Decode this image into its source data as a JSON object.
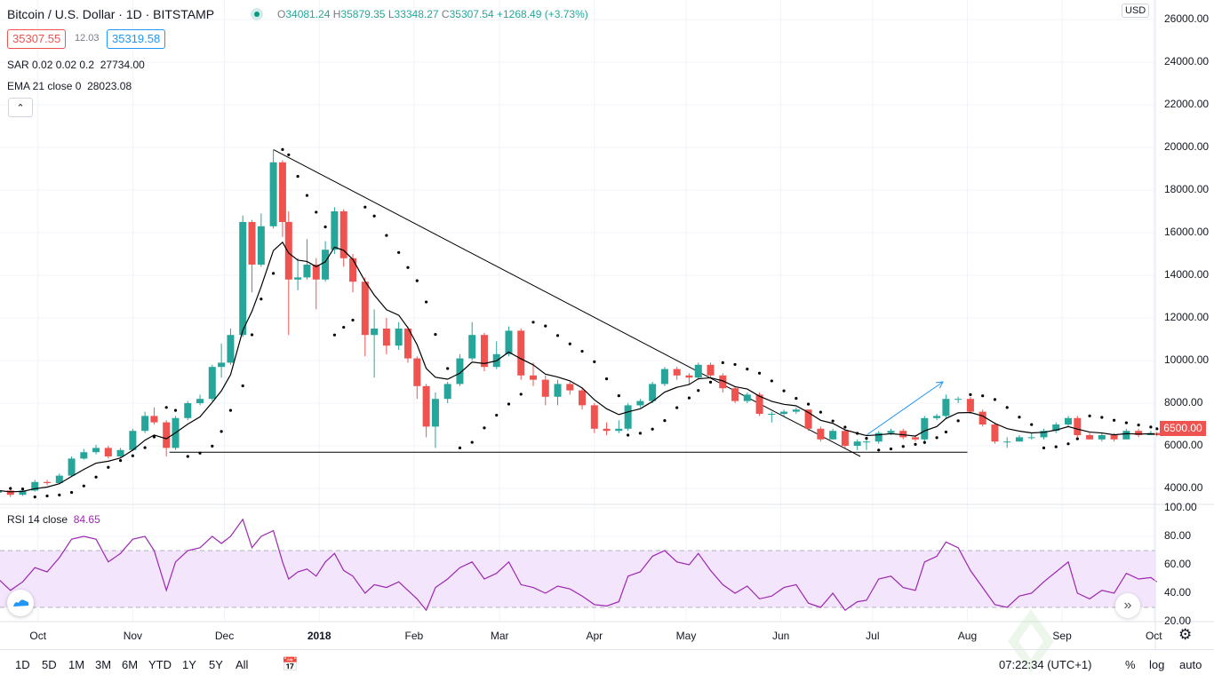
{
  "header": {
    "symbol_title": "Bitcoin / U.S. Dollar · 1D · BITSTAMP",
    "ohlc": {
      "o_label": "O",
      "o": "34081.24",
      "h_label": "H",
      "h": "35879.35",
      "l_label": "L",
      "l": "33348.27",
      "c_label": "C",
      "c": "35307.54",
      "change": "+1268.49 (+3.73%)"
    },
    "bid": "35307.55",
    "spread": "12.03",
    "ask": "35319.58",
    "sar_legend": "SAR 0.02 0.02 0.2",
    "sar_value": "27734.00",
    "ema_legend": "EMA 21 close 0",
    "ema_value": "28023.08",
    "collapse_icon": "chevron-up-icon"
  },
  "price_axis": {
    "currency": "USD",
    "labels": [
      "26000.00",
      "24000.00",
      "22000.00",
      "20000.00",
      "18000.00",
      "16000.00",
      "14000.00",
      "12000.00",
      "10000.00",
      "8000.00",
      "6000.00",
      "4000.00"
    ],
    "last_price": "6500.00"
  },
  "rsi": {
    "legend": "RSI 14 close",
    "value": "84.65",
    "axis_labels": [
      "100.00",
      "80.00",
      "60.00",
      "40.00",
      "20.00"
    ]
  },
  "time_axis": {
    "labels": [
      {
        "text": "Oct",
        "date": "2017-10-01"
      },
      {
        "text": "Nov",
        "date": "2017-11-01"
      },
      {
        "text": "Dec",
        "date": "2017-12-01"
      },
      {
        "text": "2018",
        "date": "2018-01-01"
      },
      {
        "text": "Feb",
        "date": "2018-02-01"
      },
      {
        "text": "Mar",
        "date": "2018-03-01"
      },
      {
        "text": "Apr",
        "date": "2018-04-01"
      },
      {
        "text": "May",
        "date": "2018-05-01"
      },
      {
        "text": "Jun",
        "date": "2018-06-01"
      },
      {
        "text": "Jul",
        "date": "2018-07-01"
      },
      {
        "text": "Aug",
        "date": "2018-08-01"
      },
      {
        "text": "Sep",
        "date": "2018-09-01"
      },
      {
        "text": "Oct",
        "date": "2018-10-01"
      }
    ]
  },
  "bottom_bar": {
    "ranges": [
      "1D",
      "5D",
      "1M",
      "3M",
      "6M",
      "YTD",
      "1Y",
      "5Y",
      "All"
    ],
    "clock": "07:22:34 (UTC+1)",
    "percent": "%",
    "log": "log",
    "auto": "auto"
  },
  "watermark": "Platzi",
  "colors": {
    "up": "#26a69a",
    "down": "#ef5350",
    "ema": "#000000",
    "sar": "#000000",
    "rsi": "#9c27b0",
    "rsi_band": "#f3e5fb",
    "drawing_blue": "#2196f3"
  },
  "chart_data": {
    "type": "candlestick",
    "price_range": [
      3500,
      26500
    ],
    "rsi_range": [
      20,
      100
    ],
    "rsi_bands": [
      30,
      70
    ],
    "grid": true,
    "columns": [
      "date",
      "open",
      "high",
      "low",
      "close",
      "rsi"
    ],
    "candles": [
      [
        "2017-09-18",
        3800,
        4000,
        3650,
        3900,
        50
      ],
      [
        "2017-09-22",
        3900,
        3950,
        3600,
        3700,
        42
      ],
      [
        "2017-09-26",
        3700,
        3950,
        3650,
        3900,
        48
      ],
      [
        "2017-09-30",
        3900,
        4400,
        3850,
        4300,
        58
      ],
      [
        "2017-10-04",
        4300,
        4400,
        4150,
        4250,
        55
      ],
      [
        "2017-10-08",
        4250,
        4700,
        4200,
        4600,
        65
      ],
      [
        "2017-10-12",
        4600,
        5500,
        4550,
        5400,
        78
      ],
      [
        "2017-10-16",
        5400,
        5850,
        5350,
        5700,
        80
      ],
      [
        "2017-10-20",
        5700,
        6050,
        5600,
        5900,
        78
      ],
      [
        "2017-10-24",
        5900,
        6000,
        5400,
        5500,
        62
      ],
      [
        "2017-10-28",
        5500,
        5900,
        5450,
        5800,
        68
      ],
      [
        "2017-11-01",
        5800,
        6800,
        5750,
        6700,
        78
      ],
      [
        "2017-11-05",
        6700,
        7600,
        6600,
        7400,
        80
      ],
      [
        "2017-11-08",
        7400,
        7800,
        7000,
        7100,
        70
      ],
      [
        "2017-11-12",
        7100,
        7200,
        5500,
        5900,
        42
      ],
      [
        "2017-11-15",
        5900,
        7400,
        5800,
        7300,
        62
      ],
      [
        "2017-11-19",
        7300,
        8100,
        7200,
        8000,
        70
      ],
      [
        "2017-11-23",
        8000,
        8400,
        7900,
        8200,
        72
      ],
      [
        "2017-11-27",
        8200,
        9800,
        8100,
        9700,
        80
      ],
      [
        "2017-11-30",
        9700,
        10800,
        9200,
        9900,
        75
      ],
      [
        "2017-12-03",
        9900,
        11500,
        9800,
        11200,
        80
      ],
      [
        "2017-12-07",
        11200,
        16800,
        11100,
        16500,
        92
      ],
      [
        "2017-12-10",
        16500,
        16600,
        13200,
        14500,
        72
      ],
      [
        "2017-12-13",
        14500,
        16900,
        14400,
        16300,
        80
      ],
      [
        "2017-12-17",
        16300,
        19900,
        16200,
        19300,
        84
      ],
      [
        "2017-12-20",
        19300,
        19400,
        15800,
        16500,
        62
      ],
      [
        "2017-12-22",
        16500,
        17000,
        11200,
        13800,
        50
      ],
      [
        "2017-12-25",
        13800,
        14800,
        13300,
        13900,
        55
      ],
      [
        "2017-12-28",
        13900,
        15700,
        13800,
        14500,
        57
      ],
      [
        "2017-12-31",
        14500,
        14800,
        12400,
        13800,
        52
      ],
      [
        "2018-01-03",
        13800,
        15600,
        13700,
        15200,
        62
      ],
      [
        "2018-01-06",
        15200,
        17200,
        15000,
        17000,
        68
      ],
      [
        "2018-01-09",
        17000,
        17100,
        14400,
        14800,
        56
      ],
      [
        "2018-01-12",
        14800,
        15000,
        13200,
        13700,
        52
      ],
      [
        "2018-01-16",
        13700,
        13900,
        10200,
        11200,
        40
      ],
      [
        "2018-01-19",
        11200,
        12400,
        9200,
        11500,
        46
      ],
      [
        "2018-01-23",
        11500,
        12000,
        10300,
        10700,
        44
      ],
      [
        "2018-01-27",
        10700,
        11800,
        10500,
        11500,
        48
      ],
      [
        "2018-01-30",
        11500,
        11600,
        9900,
        10100,
        42
      ],
      [
        "2018-02-02",
        10100,
        10200,
        8200,
        8800,
        36
      ],
      [
        "2018-02-05",
        8800,
        8900,
        6400,
        6900,
        28
      ],
      [
        "2018-02-08",
        6900,
        8500,
        5900,
        8200,
        44
      ],
      [
        "2018-02-12",
        8200,
        9000,
        8000,
        8900,
        50
      ],
      [
        "2018-02-16",
        8900,
        10300,
        8800,
        10100,
        58
      ],
      [
        "2018-02-20",
        10100,
        11800,
        10000,
        11200,
        62
      ],
      [
        "2018-02-24",
        11200,
        11300,
        9500,
        9700,
        50
      ],
      [
        "2018-02-28",
        9700,
        10900,
        9600,
        10300,
        54
      ],
      [
        "2018-03-04",
        10300,
        11600,
        10200,
        11400,
        62
      ],
      [
        "2018-03-08",
        11400,
        11500,
        9100,
        9300,
        46
      ],
      [
        "2018-03-12",
        9300,
        9900,
        8800,
        9100,
        44
      ],
      [
        "2018-03-16",
        9100,
        9300,
        7900,
        8300,
        40
      ],
      [
        "2018-03-20",
        8300,
        9100,
        7900,
        8900,
        45
      ],
      [
        "2018-03-24",
        8900,
        9000,
        8400,
        8600,
        43
      ],
      [
        "2018-03-28",
        8600,
        8700,
        7700,
        7900,
        38
      ],
      [
        "2018-04-01",
        7900,
        8000,
        6600,
        6800,
        32
      ],
      [
        "2018-04-05",
        6800,
        7100,
        6500,
        6700,
        31
      ],
      [
        "2018-04-09",
        6700,
        7200,
        6600,
        6800,
        34
      ],
      [
        "2018-04-12",
        6800,
        8000,
        6700,
        7900,
        52
      ],
      [
        "2018-04-16",
        7900,
        8200,
        7800,
        8100,
        55
      ],
      [
        "2018-04-20",
        8100,
        9000,
        8000,
        8900,
        66
      ],
      [
        "2018-04-24",
        8900,
        9700,
        8800,
        9600,
        70
      ],
      [
        "2018-04-28",
        9600,
        9700,
        9100,
        9300,
        62
      ],
      [
        "2018-05-02",
        9300,
        9400,
        8900,
        9200,
        60
      ],
      [
        "2018-05-05",
        9200,
        9900,
        9100,
        9800,
        68
      ],
      [
        "2018-05-09",
        9800,
        9900,
        9200,
        9300,
        56
      ],
      [
        "2018-05-13",
        9300,
        9400,
        8500,
        8700,
        46
      ],
      [
        "2018-05-17",
        8700,
        8800,
        8000,
        8100,
        40
      ],
      [
        "2018-05-21",
        8100,
        8500,
        8000,
        8400,
        45
      ],
      [
        "2018-05-25",
        8400,
        8500,
        7400,
        7500,
        36
      ],
      [
        "2018-05-29",
        7500,
        7600,
        7100,
        7500,
        38
      ],
      [
        "2018-06-02",
        7500,
        7700,
        7400,
        7600,
        44
      ],
      [
        "2018-06-06",
        7600,
        7800,
        7500,
        7700,
        46
      ],
      [
        "2018-06-10",
        7700,
        7700,
        6700,
        6800,
        33
      ],
      [
        "2018-06-14",
        6800,
        6900,
        6200,
        6300,
        30
      ],
      [
        "2018-06-18",
        6300,
        6800,
        6300,
        6700,
        40
      ],
      [
        "2018-06-22",
        6700,
        6750,
        5900,
        6000,
        28
      ],
      [
        "2018-06-26",
        6000,
        6300,
        5800,
        6200,
        34
      ],
      [
        "2018-06-29",
        6200,
        6300,
        5800,
        6200,
        35
      ],
      [
        "2018-07-03",
        6200,
        6700,
        6100,
        6600,
        50
      ],
      [
        "2018-07-07",
        6600,
        6800,
        6500,
        6700,
        52
      ],
      [
        "2018-07-11",
        6700,
        6800,
        6300,
        6400,
        44
      ],
      [
        "2018-07-15",
        6400,
        6500,
        6200,
        6300,
        42
      ],
      [
        "2018-07-18",
        6300,
        7400,
        6200,
        7300,
        62
      ],
      [
        "2018-07-22",
        7300,
        7500,
        7200,
        7400,
        66
      ],
      [
        "2018-07-25",
        7400,
        8400,
        7300,
        8200,
        76
      ],
      [
        "2018-07-29",
        8200,
        8300,
        8000,
        8200,
        72
      ],
      [
        "2018-08-02",
        8200,
        8300,
        7500,
        7600,
        56
      ],
      [
        "2018-08-06",
        7600,
        7700,
        6900,
        7000,
        44
      ],
      [
        "2018-08-10",
        7000,
        7100,
        6100,
        6200,
        32
      ],
      [
        "2018-08-14",
        6200,
        6400,
        5900,
        6200,
        30
      ],
      [
        "2018-08-18",
        6200,
        6500,
        6200,
        6400,
        38
      ],
      [
        "2018-08-22",
        6400,
        6600,
        6300,
        6400,
        40
      ],
      [
        "2018-08-26",
        6400,
        6800,
        6300,
        6700,
        48
      ],
      [
        "2018-08-30",
        6700,
        7100,
        6600,
        7000,
        55
      ],
      [
        "2018-09-03",
        7000,
        7400,
        6900,
        7300,
        62
      ],
      [
        "2018-09-06",
        7300,
        7400,
        6400,
        6500,
        40
      ],
      [
        "2018-09-10",
        6500,
        6600,
        6300,
        6300,
        36
      ],
      [
        "2018-09-14",
        6300,
        6600,
        6200,
        6500,
        42
      ],
      [
        "2018-09-18",
        6500,
        6600,
        6200,
        6300,
        40
      ],
      [
        "2018-09-22",
        6300,
        6800,
        6300,
        6700,
        54
      ],
      [
        "2018-09-26",
        6700,
        6800,
        6400,
        6500,
        50
      ],
      [
        "2018-09-30",
        6500,
        6700,
        6500,
        6600,
        51
      ],
      [
        "2018-10-02",
        6600,
        6650,
        6450,
        6500,
        48
      ]
    ],
    "drawings": [
      {
        "kind": "trend-line",
        "from": [
          "2017-12-17",
          19900
        ],
        "to": [
          "2018-06-27",
          5500
        ],
        "color": "#000000"
      },
      {
        "kind": "horizontal-segment",
        "from": [
          "2017-11-13",
          5700
        ],
        "to": [
          "2018-08-01",
          5700
        ],
        "color": "#000000"
      },
      {
        "kind": "arrow",
        "from": [
          "2018-06-29",
          6500
        ],
        "to": [
          "2018-07-24",
          9000
        ],
        "color": "#2196f3"
      }
    ]
  }
}
